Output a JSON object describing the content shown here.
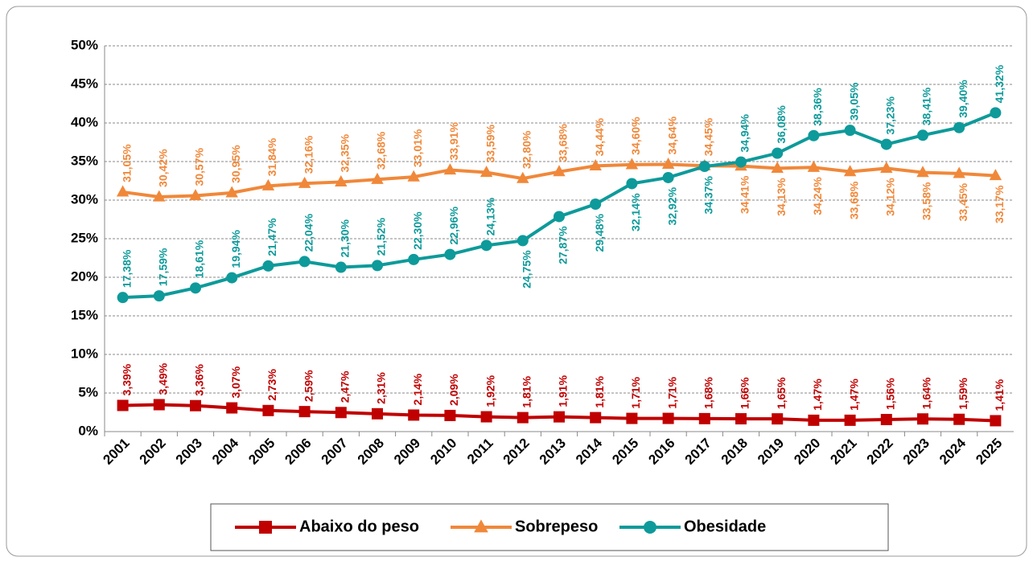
{
  "chart_data": {
    "type": "line",
    "categories": [
      "2001",
      "2002",
      "2003",
      "2004",
      "2005",
      "2006",
      "2007",
      "2008",
      "2009",
      "2010",
      "2011",
      "2012",
      "2013",
      "2014",
      "2015",
      "2016",
      "2017",
      "2018",
      "2019",
      "2020",
      "2021",
      "2022",
      "2023",
      "2024",
      "2025"
    ],
    "series": [
      {
        "name": "Abaixo do peso",
        "color": "#c00000",
        "marker": "square",
        "values": [
          3.39,
          3.49,
          3.36,
          3.07,
          2.73,
          2.59,
          2.47,
          2.31,
          2.14,
          2.09,
          1.92,
          1.81,
          1.91,
          1.81,
          1.71,
          1.71,
          1.68,
          1.66,
          1.65,
          1.47,
          1.47,
          1.56,
          1.64,
          1.59,
          1.41
        ],
        "value_labels": [
          "3,39%",
          "3,49%",
          "3,36%",
          "3,07%",
          "2,73%",
          "2,59%",
          "2,47%",
          "2,31%",
          "2,14%",
          "2,09%",
          "1,92%",
          "1,81%",
          "1,91%",
          "1,81%",
          "1,71%",
          "1,71%",
          "1,68%",
          "1,66%",
          "1,65%",
          "1,47%",
          "1,47%",
          "1,56%",
          "1,64%",
          "1,59%",
          "1,41%"
        ]
      },
      {
        "name": "Sobrepeso",
        "color": "#f0883a",
        "marker": "triangle",
        "values": [
          31.05,
          30.42,
          30.57,
          30.95,
          31.84,
          32.16,
          32.35,
          32.68,
          33.01,
          33.91,
          33.59,
          32.8,
          33.68,
          34.44,
          34.6,
          34.64,
          34.45,
          34.41,
          34.13,
          34.24,
          33.68,
          34.12,
          33.58,
          33.45,
          33.17
        ],
        "value_labels": [
          "31,05%",
          "30,42%",
          "30,57%",
          "30,95%",
          "31,84%",
          "32,16%",
          "32,35%",
          "32,68%",
          "33,01%",
          "33,91%",
          "33,59%",
          "32,80%",
          "33,68%",
          "34,44%",
          "34,60%",
          "34,64%",
          "34,45%",
          "34,41%",
          "34,13%",
          "34,24%",
          "33,68%",
          "34,12%",
          "33,58%",
          "33,45%",
          "33,17%"
        ]
      },
      {
        "name": "Obesidade",
        "color": "#0e9a9a",
        "marker": "circle",
        "values": [
          17.38,
          17.59,
          18.61,
          19.94,
          21.47,
          22.04,
          21.3,
          21.52,
          22.3,
          22.96,
          24.13,
          24.75,
          27.87,
          29.48,
          32.14,
          32.92,
          34.37,
          34.94,
          36.08,
          38.36,
          39.05,
          37.23,
          38.41,
          39.4,
          41.32
        ],
        "value_labels": [
          "17,38%",
          "17,59%",
          "18,61%",
          "19,94%",
          "21,47%",
          "22,04%",
          "21,30%",
          "21,52%",
          "22,30%",
          "22,96%",
          "24,13%",
          "24,75%",
          "27,87%",
          "29,48%",
          "32,14%",
          "32,92%",
          "34,37%",
          "34,94%",
          "36,08%",
          "38,36%",
          "39,05%",
          "37,23%",
          "38,41%",
          "39,40%",
          "41,32%"
        ]
      }
    ],
    "ylim": [
      0,
      50
    ],
    "yticks": [
      {
        "value": 0,
        "label": "0%"
      },
      {
        "value": 5,
        "label": "5%"
      },
      {
        "value": 10,
        "label": "10%"
      },
      {
        "value": 15,
        "label": "15%"
      },
      {
        "value": 20,
        "label": "20%"
      },
      {
        "value": 25,
        "label": "25%"
      },
      {
        "value": 30,
        "label": "30%"
      },
      {
        "value": 35,
        "label": "35%"
      },
      {
        "value": 40,
        "label": "40%"
      },
      {
        "value": 45,
        "label": "45%"
      },
      {
        "value": 50,
        "label": "50%"
      }
    ],
    "grid": true,
    "legend": "bottom"
  }
}
